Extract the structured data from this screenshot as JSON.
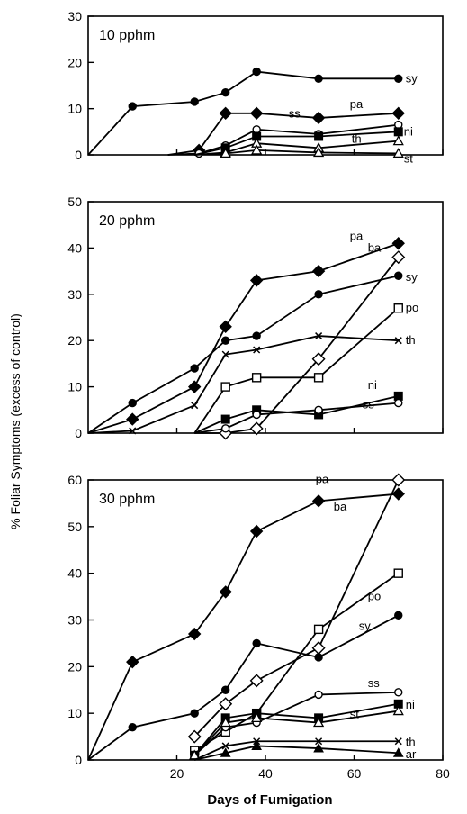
{
  "figure": {
    "ylabel": "% Foliar Symptoms (excess of control)",
    "xlabel": "Days of Fumigation"
  },
  "chart_data": [
    {
      "type": "line",
      "title": "10 pphm",
      "xlim": [
        0,
        80
      ],
      "ylim": [
        0,
        30
      ],
      "x_ticks": [
        "20",
        "40",
        "60",
        "80"
      ],
      "y_ticks": [
        "0",
        "10",
        "20",
        "30"
      ],
      "x_ticks_shown": false,
      "series": [
        {
          "name": "sy",
          "marker": "filled-circle",
          "x": [
            0,
            10,
            24,
            31,
            38,
            52,
            70
          ],
          "y": [
            0,
            10.5,
            11.5,
            13.5,
            18,
            16.5,
            16.5
          ]
        },
        {
          "name": "pa",
          "marker": "filled-diamond",
          "x": [
            18,
            25,
            31,
            38,
            52,
            70
          ],
          "y": [
            0,
            1,
            9,
            9,
            8,
            9
          ]
        },
        {
          "name": "ss",
          "marker": "open-circle",
          "x": [
            18,
            25,
            31,
            38,
            52,
            70
          ],
          "y": [
            0,
            0.3,
            2,
            5.5,
            4.5,
            6.5
          ]
        },
        {
          "name": "ni",
          "marker": "filled-square",
          "x": [
            24,
            31,
            38,
            52,
            70
          ],
          "y": [
            0,
            1.5,
            4,
            4,
            5
          ]
        },
        {
          "name": "th",
          "marker": "open-triangle",
          "x": [
            24,
            31,
            38,
            52,
            70
          ],
          "y": [
            0,
            0.5,
            2.5,
            1.5,
            3
          ]
        },
        {
          "name": "st",
          "marker": "open-triangle",
          "x": [
            24,
            31,
            38,
            52,
            70
          ],
          "y": [
            0,
            0.3,
            1,
            0.5,
            0.3
          ]
        }
      ]
    },
    {
      "type": "line",
      "title": "20 pphm",
      "xlim": [
        0,
        80
      ],
      "ylim": [
        0,
        50
      ],
      "x_ticks": [
        "20",
        "40",
        "60",
        "80"
      ],
      "y_ticks": [
        "0",
        "10",
        "20",
        "30",
        "40",
        "50"
      ],
      "x_ticks_shown": false,
      "series": [
        {
          "name": "pa",
          "marker": "filled-diamond",
          "x": [
            0,
            10,
            24,
            31,
            38,
            52,
            70
          ],
          "y": [
            0,
            3,
            10,
            23,
            33,
            35,
            41
          ]
        },
        {
          "name": "ba",
          "marker": "open-diamond",
          "x": [
            24,
            31,
            38,
            52,
            70
          ],
          "y": [
            0,
            0,
            1,
            16,
            38
          ]
        },
        {
          "name": "sy",
          "marker": "filled-circle",
          "x": [
            0,
            10,
            24,
            31,
            38,
            52,
            70
          ],
          "y": [
            0,
            6.5,
            14,
            20,
            21,
            30,
            34
          ]
        },
        {
          "name": "po",
          "marker": "open-square",
          "x": [
            24,
            31,
            38,
            52,
            70
          ],
          "y": [
            0,
            10,
            12,
            12,
            27
          ]
        },
        {
          "name": "th",
          "marker": "cross",
          "x": [
            0,
            10,
            24,
            31,
            38,
            52,
            70
          ],
          "y": [
            0,
            0.5,
            6,
            17,
            18,
            21,
            20
          ]
        },
        {
          "name": "ni",
          "marker": "filled-square",
          "x": [
            24,
            31,
            38,
            52,
            70
          ],
          "y": [
            0,
            3,
            5,
            4,
            8
          ]
        },
        {
          "name": "ss",
          "marker": "open-circle",
          "x": [
            24,
            31,
            38,
            52,
            70
          ],
          "y": [
            0,
            1,
            4,
            5,
            6.5
          ]
        }
      ]
    },
    {
      "type": "line",
      "title": "30 pphm",
      "xlim": [
        0,
        80
      ],
      "ylim": [
        0,
        60
      ],
      "x_ticks": [
        "20",
        "40",
        "60",
        "80"
      ],
      "y_ticks": [
        "0",
        "10",
        "20",
        "30",
        "40",
        "50",
        "60"
      ],
      "x_ticks_shown": true,
      "series": [
        {
          "name": "pa",
          "marker": "filled-diamond",
          "x": [
            0,
            10,
            24,
            31,
            38,
            52,
            70
          ],
          "y": [
            0,
            21,
            27,
            36,
            49,
            55.5,
            57
          ]
        },
        {
          "name": "ba",
          "marker": "open-diamond",
          "x": [
            24,
            31,
            38,
            52,
            70
          ],
          "y": [
            5,
            12,
            17,
            24,
            60
          ]
        },
        {
          "name": "po",
          "marker": "open-square",
          "x": [
            24,
            31,
            38,
            52,
            70
          ],
          "y": [
            2,
            6,
            10,
            28,
            40
          ]
        },
        {
          "name": "sy",
          "marker": "filled-circle",
          "x": [
            0,
            10,
            24,
            31,
            38,
            52,
            70
          ],
          "y": [
            0,
            7,
            10,
            15,
            25,
            22,
            31
          ]
        },
        {
          "name": "ss",
          "marker": "open-circle",
          "x": [
            24,
            31,
            38,
            52,
            70
          ],
          "y": [
            1,
            7,
            8,
            14,
            14.5
          ]
        },
        {
          "name": "ni",
          "marker": "filled-square",
          "x": [
            24,
            31,
            38,
            52,
            70
          ],
          "y": [
            1,
            9,
            10,
            9,
            12
          ]
        },
        {
          "name": "st",
          "marker": "open-triangle",
          "x": [
            24,
            31,
            38,
            52,
            70
          ],
          "y": [
            1,
            8,
            9,
            8,
            10.5
          ]
        },
        {
          "name": "th",
          "marker": "cross",
          "x": [
            24,
            31,
            38,
            52,
            70
          ],
          "y": [
            0,
            3,
            4,
            4,
            4
          ]
        },
        {
          "name": "ar",
          "marker": "filled-triangle",
          "x": [
            24,
            31,
            38,
            52,
            70
          ],
          "y": [
            0,
            1.5,
            3,
            2.5,
            1.5
          ]
        }
      ]
    }
  ]
}
